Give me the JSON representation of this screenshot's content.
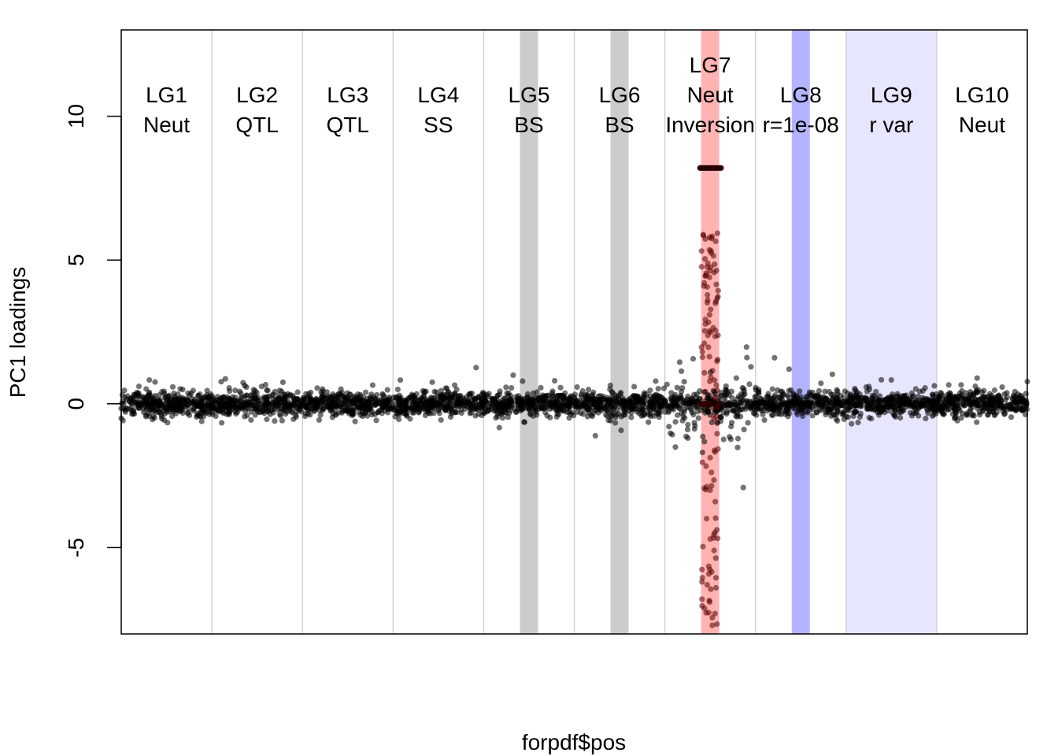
{
  "chart_data": {
    "type": "scatter",
    "xlabel": "forpdf$pos",
    "ylabel": "PC1 loadings",
    "ylim": [
      -8,
      13
    ],
    "yticks": [
      -5,
      0,
      5,
      10
    ],
    "linkage_groups": [
      {
        "name": "LG1",
        "desc": [
          "Neut"
        ]
      },
      {
        "name": "LG2",
        "desc": [
          "QTL"
        ]
      },
      {
        "name": "LG3",
        "desc": [
          "QTL"
        ]
      },
      {
        "name": "LG4",
        "desc": [
          "SS"
        ]
      },
      {
        "name": "LG5",
        "desc": [
          "BS"
        ]
      },
      {
        "name": "LG6",
        "desc": [
          "BS"
        ]
      },
      {
        "name": "LG7",
        "desc": [
          "Neut",
          "Inversion"
        ]
      },
      {
        "name": "LG8",
        "desc": [
          "r=1e-08"
        ]
      },
      {
        "name": "LG9",
        "desc": [
          "r var"
        ]
      },
      {
        "name": "LG10",
        "desc": [
          "Neut"
        ]
      }
    ],
    "highlights": [
      {
        "group": "LG5",
        "color": "#cccccc",
        "extent": "narrow"
      },
      {
        "group": "LG6",
        "color": "#cccccc",
        "extent": "narrow"
      },
      {
        "group": "LG7",
        "color": "#ffb3b3",
        "extent": "narrow"
      },
      {
        "group": "LG8",
        "color": "#b3b3ff",
        "extent": "narrow"
      },
      {
        "group": "LG9",
        "color": "#e6e6ff",
        "extent": "full"
      }
    ],
    "notes": {
      "baseline_spread": 0.5,
      "lg7_cluster_value": 8.2,
      "lg7_outlier_range": [
        -7.8,
        6.1
      ]
    }
  }
}
